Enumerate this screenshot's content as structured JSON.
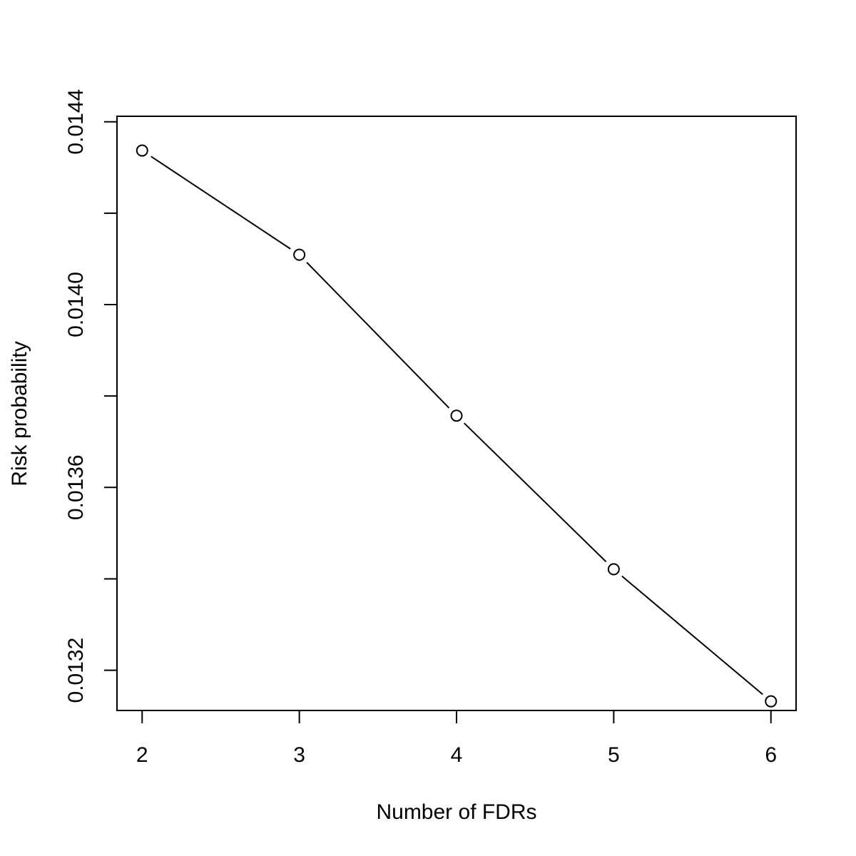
{
  "chart_data": {
    "type": "line",
    "title": "",
    "xlabel": "Number of FDRs",
    "ylabel": "Risk probability",
    "x": [
      2,
      3,
      4,
      5,
      6
    ],
    "series": [
      {
        "values": [
          0.014337,
          0.014109,
          0.013757,
          0.013421,
          0.013132
        ]
      }
    ],
    "xlim": [
      1.84,
      6.16
    ],
    "ylim": [
      0.013112,
      0.014412
    ],
    "x_ticks": [
      2,
      3,
      4,
      5,
      6
    ],
    "x_tick_labels": [
      "2",
      "3",
      "4",
      "5",
      "6"
    ],
    "y_ticks": [
      0.0132,
      0.0134,
      0.0136,
      0.0138,
      0.014,
      0.0142,
      0.0144
    ],
    "y_tick_labels": [
      "0.0132",
      "",
      "0.0136",
      "",
      "0.0140",
      "",
      "0.0144"
    ],
    "marker": "open-circle",
    "grid": false,
    "legend": false,
    "colors": {
      "line": "#000000",
      "marker_fill": "#ffffff"
    }
  }
}
